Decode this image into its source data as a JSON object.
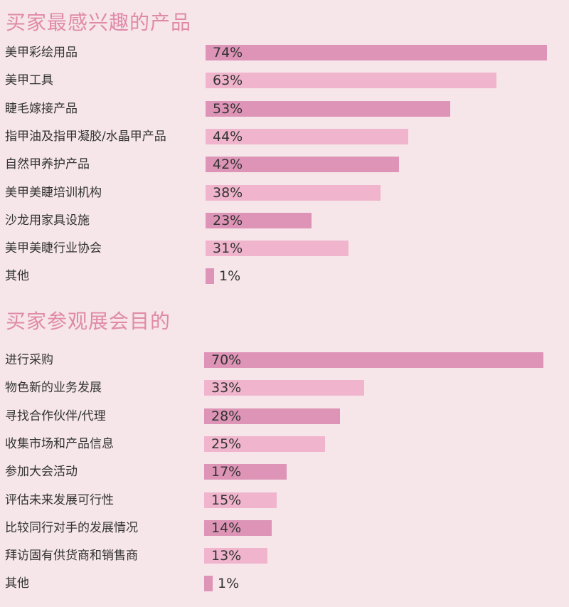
{
  "colors": {
    "bar_dark": "#dd94b6",
    "bar_light": "#f0b5cc",
    "title": "#e08aa8"
  },
  "chart_data": [
    {
      "type": "bar",
      "orientation": "horizontal",
      "title": "买家最感兴趣的产品",
      "xlim": [
        0,
        74
      ],
      "categories": [
        "美甲彩绘用品",
        "美甲工具",
        "睫毛嫁接产品",
        "指甲油及指甲凝胶/水晶甲产品",
        "自然甲养护产品",
        "美甲美睫培训机构",
        "沙龙用家具设施",
        "美甲美睫行业协会",
        "其他"
      ],
      "values": [
        74,
        63,
        53,
        44,
        42,
        38,
        23,
        31,
        1
      ],
      "value_labels": [
        "74%",
        "63%",
        "53%",
        "44%",
        "42%",
        "38%",
        "23%",
        "31%",
        "1%"
      ]
    },
    {
      "type": "bar",
      "orientation": "horizontal",
      "title": "买家参观展会目的",
      "xlim": [
        0,
        70
      ],
      "categories": [
        "进行采购",
        "物色新的业务发展",
        "寻找合作伙伴/代理",
        "收集市场和产品信息",
        "参加大会活动",
        "评估未来发展可行性",
        "比较同行对手的发展情况",
        "拜访固有供货商和销售商",
        "其他"
      ],
      "values": [
        70,
        33,
        28,
        25,
        17,
        15,
        14,
        13,
        1
      ],
      "value_labels": [
        "70%",
        "33%",
        "28%",
        "25%",
        "17%",
        "15%",
        "14%",
        "13%",
        "1%"
      ]
    }
  ]
}
